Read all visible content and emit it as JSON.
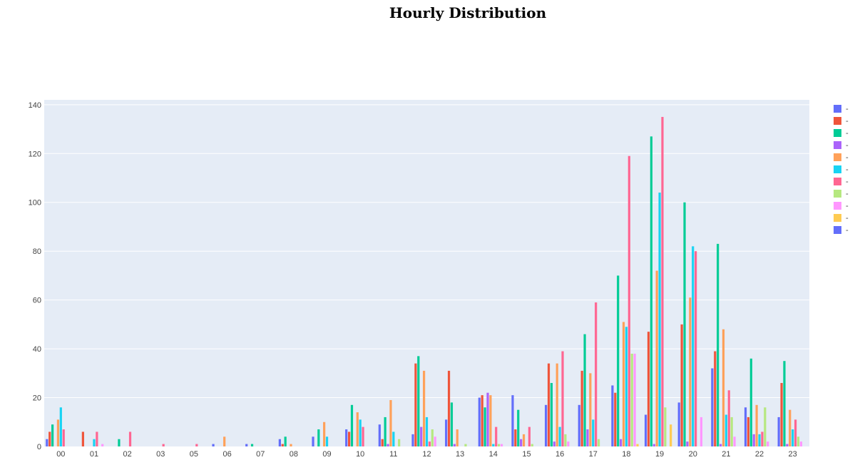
{
  "chart_data": {
    "type": "bar",
    "title": "Hourly Distribution",
    "xlabel": "",
    "ylabel": "",
    "ylim": [
      0,
      142
    ],
    "yticks": [
      0,
      20,
      40,
      60,
      80,
      100,
      120,
      140
    ],
    "categories": [
      "00",
      "01",
      "02",
      "03",
      "05",
      "06",
      "07",
      "08",
      "09",
      "10",
      "11",
      "12",
      "13",
      "14",
      "15",
      "16",
      "17",
      "18",
      "19",
      "20",
      "21",
      "22",
      "23"
    ],
    "grid": true,
    "legend_position": "right",
    "plot_background": "#e5ecf6",
    "series": [
      {
        "color": "#636efa",
        "values": [
          3,
          0,
          0,
          0,
          0,
          1,
          1,
          3,
          4,
          7,
          9,
          5,
          11,
          20,
          21,
          17,
          17,
          25,
          13,
          18,
          32,
          16,
          12
        ]
      },
      {
        "color": "#ef553b",
        "values": [
          6,
          6,
          0,
          0,
          0,
          0,
          0,
          1,
          0,
          6,
          3,
          34,
          31,
          21,
          7,
          34,
          31,
          22,
          47,
          50,
          39,
          12,
          26
        ]
      },
      {
        "color": "#00cc96",
        "values": [
          9,
          0,
          3,
          0,
          0,
          0,
          1,
          4,
          7,
          17,
          12,
          37,
          18,
          16,
          15,
          26,
          46,
          70,
          127,
          100,
          83,
          36,
          35
        ]
      },
      {
        "color": "#ab63fa",
        "values": [
          0,
          0,
          0,
          0,
          0,
          0,
          0,
          0,
          0,
          0,
          1,
          8,
          1,
          22,
          3,
          2,
          7,
          3,
          1,
          2,
          1,
          5,
          1
        ]
      },
      {
        "color": "#ffa15a",
        "values": [
          11,
          0,
          0,
          0,
          0,
          4,
          0,
          1,
          10,
          14,
          19,
          31,
          7,
          21,
          5,
          34,
          30,
          51,
          72,
          61,
          48,
          17,
          15
        ]
      },
      {
        "color": "#19d3f3",
        "values": [
          16,
          3,
          0,
          0,
          0,
          0,
          0,
          0,
          4,
          11,
          6,
          12,
          0,
          1,
          0,
          8,
          11,
          49,
          104,
          82,
          13,
          5,
          7
        ]
      },
      {
        "color": "#ff6692",
        "values": [
          7,
          6,
          6,
          1,
          1,
          0,
          0,
          0,
          0,
          8,
          0,
          2,
          0,
          8,
          8,
          39,
          59,
          119,
          135,
          80,
          23,
          6,
          11
        ]
      },
      {
        "color": "#b6e880",
        "values": [
          0,
          0,
          0,
          0,
          0,
          0,
          0,
          0,
          0,
          0,
          3,
          7,
          1,
          1,
          1,
          5,
          3,
          38,
          16,
          0,
          12,
          16,
          4
        ]
      },
      {
        "color": "#ff97ff",
        "values": [
          0,
          1,
          0,
          0,
          0,
          0,
          0,
          0,
          0,
          0,
          0,
          4,
          0,
          1,
          0,
          2,
          0,
          38,
          0,
          12,
          4,
          2,
          2
        ]
      },
      {
        "color": "#fecb52",
        "values": [
          0,
          0,
          0,
          0,
          0,
          0,
          0,
          0,
          0,
          0,
          0,
          0,
          0,
          0,
          0,
          0,
          0,
          1,
          9,
          0,
          0,
          0,
          0
        ]
      },
      {
        "color": "#636efa",
        "values": [
          0,
          0,
          0,
          0,
          0,
          0,
          0,
          0,
          0,
          0,
          0,
          0,
          0,
          0,
          0,
          0,
          0,
          0,
          0,
          0,
          0,
          0,
          0
        ]
      }
    ],
    "legend_entries": [
      {
        "color": "#636efa",
        "label": "-"
      },
      {
        "color": "#ef553b",
        "label": "-"
      },
      {
        "color": "#00cc96",
        "label": "-"
      },
      {
        "color": "#ab63fa",
        "label": "-"
      },
      {
        "color": "#ffa15a",
        "label": "-"
      },
      {
        "color": "#19d3f3",
        "label": "-"
      },
      {
        "color": "#ff6692",
        "label": "-"
      },
      {
        "color": "#b6e880",
        "label": "-"
      },
      {
        "color": "#ff97ff",
        "label": "-"
      },
      {
        "color": "#fecb52",
        "label": "-"
      },
      {
        "color": "#636efa",
        "label": "-"
      }
    ]
  }
}
